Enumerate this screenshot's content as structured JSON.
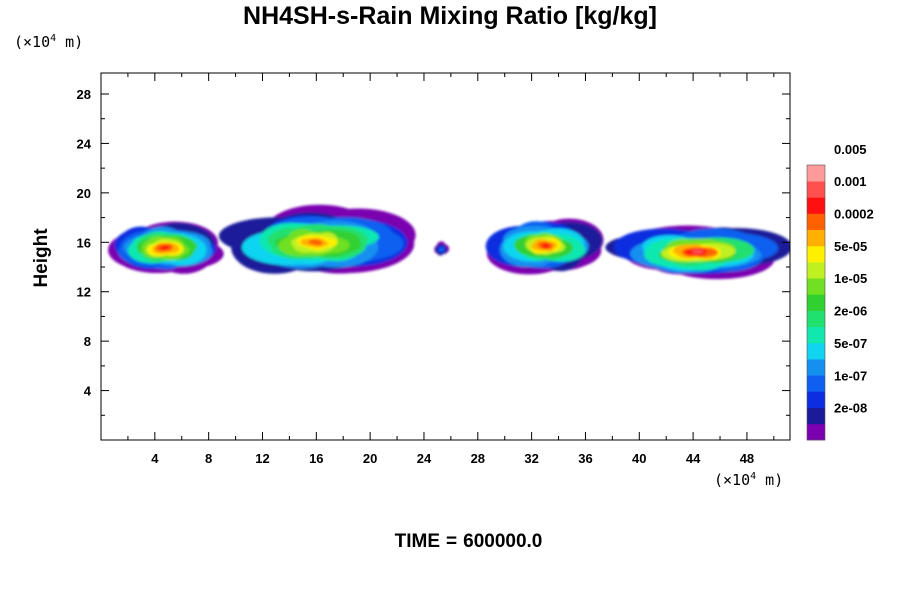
{
  "chart_data": {
    "type": "heatmap",
    "title": "NH4SH-s-Rain Mixing Ratio [kg/kg]",
    "ylabel": "Height",
    "xlabel": "",
    "x_unit_label": {
      "prefix": "(×10",
      "exp": "4",
      "suffix": " m)"
    },
    "y_unit_label": {
      "prefix": "(×10",
      "exp": "4",
      "suffix": " m)"
    },
    "xlim": [
      0,
      51.2
    ],
    "ylim": [
      0,
      29.7
    ],
    "x_ticks": [
      "4",
      "8",
      "12",
      "16",
      "20",
      "24",
      "28",
      "32",
      "36",
      "40",
      "44",
      "48"
    ],
    "y_ticks": [
      "4",
      "8",
      "12",
      "16",
      "20",
      "24",
      "28"
    ],
    "time_label": "TIME",
    "time_eq": "=",
    "time_value": "600000.0",
    "colorbar": {
      "colors": [
        "#7a00b0",
        "#1b1b9a",
        "#0a2ee0",
        "#1060f0",
        "#1590f0",
        "#10d4f0",
        "#10e8b0",
        "#20e070",
        "#30d030",
        "#70e020",
        "#c0f020",
        "#fff000",
        "#ffb000",
        "#ff6000",
        "#ff1010",
        "#ff5050",
        "#ff9a9a"
      ],
      "labels": [
        "2e-08",
        "1e-07",
        "5e-07",
        "2e-06",
        "1e-05",
        "5e-05",
        "0.0002",
        "0.001",
        "0.005"
      ]
    },
    "clouds": [
      {
        "region": "left-edge",
        "x_range": [
          0,
          9.5
        ],
        "y_range": [
          13.2,
          18.2
        ],
        "max_level": 15
      },
      {
        "region": "main-anvil",
        "x_range": [
          8.5,
          23.5
        ],
        "y_range": [
          13.0,
          19.3
        ],
        "max_level": 14
      },
      {
        "region": "small-cell",
        "x_range": [
          24.8,
          25.8
        ],
        "y_range": [
          15.0,
          16.2
        ],
        "max_level": 4
      },
      {
        "region": "middle-cell",
        "x_range": [
          28.5,
          37.5
        ],
        "y_range": [
          13.3,
          18.5
        ],
        "max_level": 15
      },
      {
        "region": "right-band",
        "x_range": [
          37.5,
          51.2
        ],
        "y_range": [
          13.0,
          17.8
        ],
        "max_level": 16
      }
    ]
  }
}
